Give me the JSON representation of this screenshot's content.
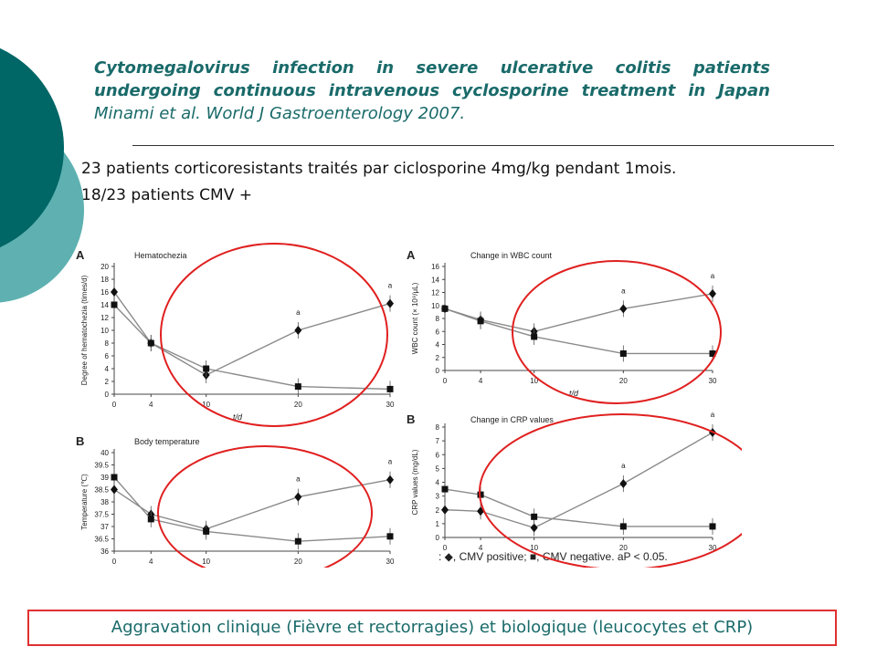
{
  "title": {
    "bold_italic": "Cytomegalovirus infection in severe ulcerative colitis patients undergoing continuous intravenous cyclosporine treatment in Japan",
    "citation": " Minami et al. World J Gastroenterology 2007."
  },
  "bullets": [
    "23 patients corticoresistants traités par ciclosporine 4mg/kg pendant 1mois.",
    "18/23 patients CMV +"
  ],
  "figure": {
    "legend": ": ◆, CMV positive; ■, CMV negative. aP < 0.05.",
    "x_ticks": [
      "0",
      "4",
      "10",
      "20",
      "30"
    ],
    "x_unit": "t/d",
    "sig_mark": "a",
    "panels": {
      "hematochezia": {
        "letter": "A",
        "title": "Hematochezia",
        "ylabel": "Degree of hematochezia (times/d)",
        "yticks": [
          "0",
          "2",
          "4",
          "6",
          "8",
          "10",
          "12",
          "14",
          "16",
          "18",
          "20"
        ]
      },
      "temperature": {
        "letter": "B",
        "title": "Body temperature",
        "ylabel": "Temperature (℃)",
        "yticks": [
          "36",
          "36.5",
          "37",
          "37.5",
          "38",
          "38.5",
          "39",
          "39.5",
          "40"
        ]
      },
      "wbc": {
        "letter": "A",
        "title": "Change in WBC count",
        "ylabel": "WBC count (× 10⁹/μL)",
        "yticks": [
          "0",
          "2",
          "4",
          "6",
          "8",
          "10",
          "12",
          "14",
          "16"
        ]
      },
      "crp": {
        "letter": "B",
        "title": "Change in CRP values",
        "ylabel": "CRP values (mg/dL)",
        "yticks": [
          "0",
          "1",
          "2",
          "3",
          "4",
          "5",
          "6",
          "7",
          "8"
        ]
      }
    }
  },
  "conclusion": "Aggravation clinique (Fièvre et rectorragies) et biologique (leucocytes et CRP)",
  "colors": {
    "title_teal": "#1a6a6a",
    "deco_dark": "#006666",
    "deco_light": "#5fb1b1",
    "circle_red": "#e02020",
    "series_gray": "#8a8a8a"
  },
  "chart_data": [
    {
      "type": "line",
      "title": "Hematochezia",
      "xlabel": "t/d",
      "ylabel": "Degree of hematochezia (times/d)",
      "x": [
        0,
        4,
        10,
        20,
        30
      ],
      "ylim": [
        0,
        20
      ],
      "series": [
        {
          "name": "CMV positive",
          "values": [
            16,
            8,
            3,
            10,
            14.2
          ]
        },
        {
          "name": "CMV negative",
          "values": [
            14,
            8,
            4,
            1.2,
            0.8
          ]
        }
      ]
    },
    {
      "type": "line",
      "title": "Body temperature",
      "xlabel": "",
      "ylabel": "Temperature (℃)",
      "x": [
        0,
        4,
        10,
        20,
        30
      ],
      "ylim": [
        36,
        40
      ],
      "series": [
        {
          "name": "CMV positive",
          "values": [
            38.5,
            37.5,
            36.9,
            38.2,
            38.9
          ]
        },
        {
          "name": "CMV negative",
          "values": [
            39,
            37.3,
            36.8,
            36.4,
            36.6
          ]
        }
      ]
    },
    {
      "type": "line",
      "title": "Change in WBC count",
      "xlabel": "t/d",
      "ylabel": "WBC count (× 10⁹/μL)",
      "x": [
        0,
        4,
        10,
        20,
        30
      ],
      "ylim": [
        0,
        16
      ],
      "series": [
        {
          "name": "CMV positive",
          "values": [
            9.5,
            7.8,
            6,
            9.5,
            11.8
          ]
        },
        {
          "name": "CMV negative",
          "values": [
            9.5,
            7.6,
            5.2,
            2.6,
            2.6
          ]
        }
      ]
    },
    {
      "type": "line",
      "title": "Change in CRP values",
      "xlabel": "",
      "ylabel": "CRP values (mg/dL)",
      "x": [
        0,
        4,
        10,
        20,
        30
      ],
      "ylim": [
        0,
        8
      ],
      "series": [
        {
          "name": "CMV positive",
          "values": [
            2,
            1.9,
            0.7,
            3.9,
            7.6
          ]
        },
        {
          "name": "CMV negative",
          "values": [
            3.5,
            3.1,
            1.5,
            0.8,
            0.8
          ]
        }
      ]
    }
  ]
}
